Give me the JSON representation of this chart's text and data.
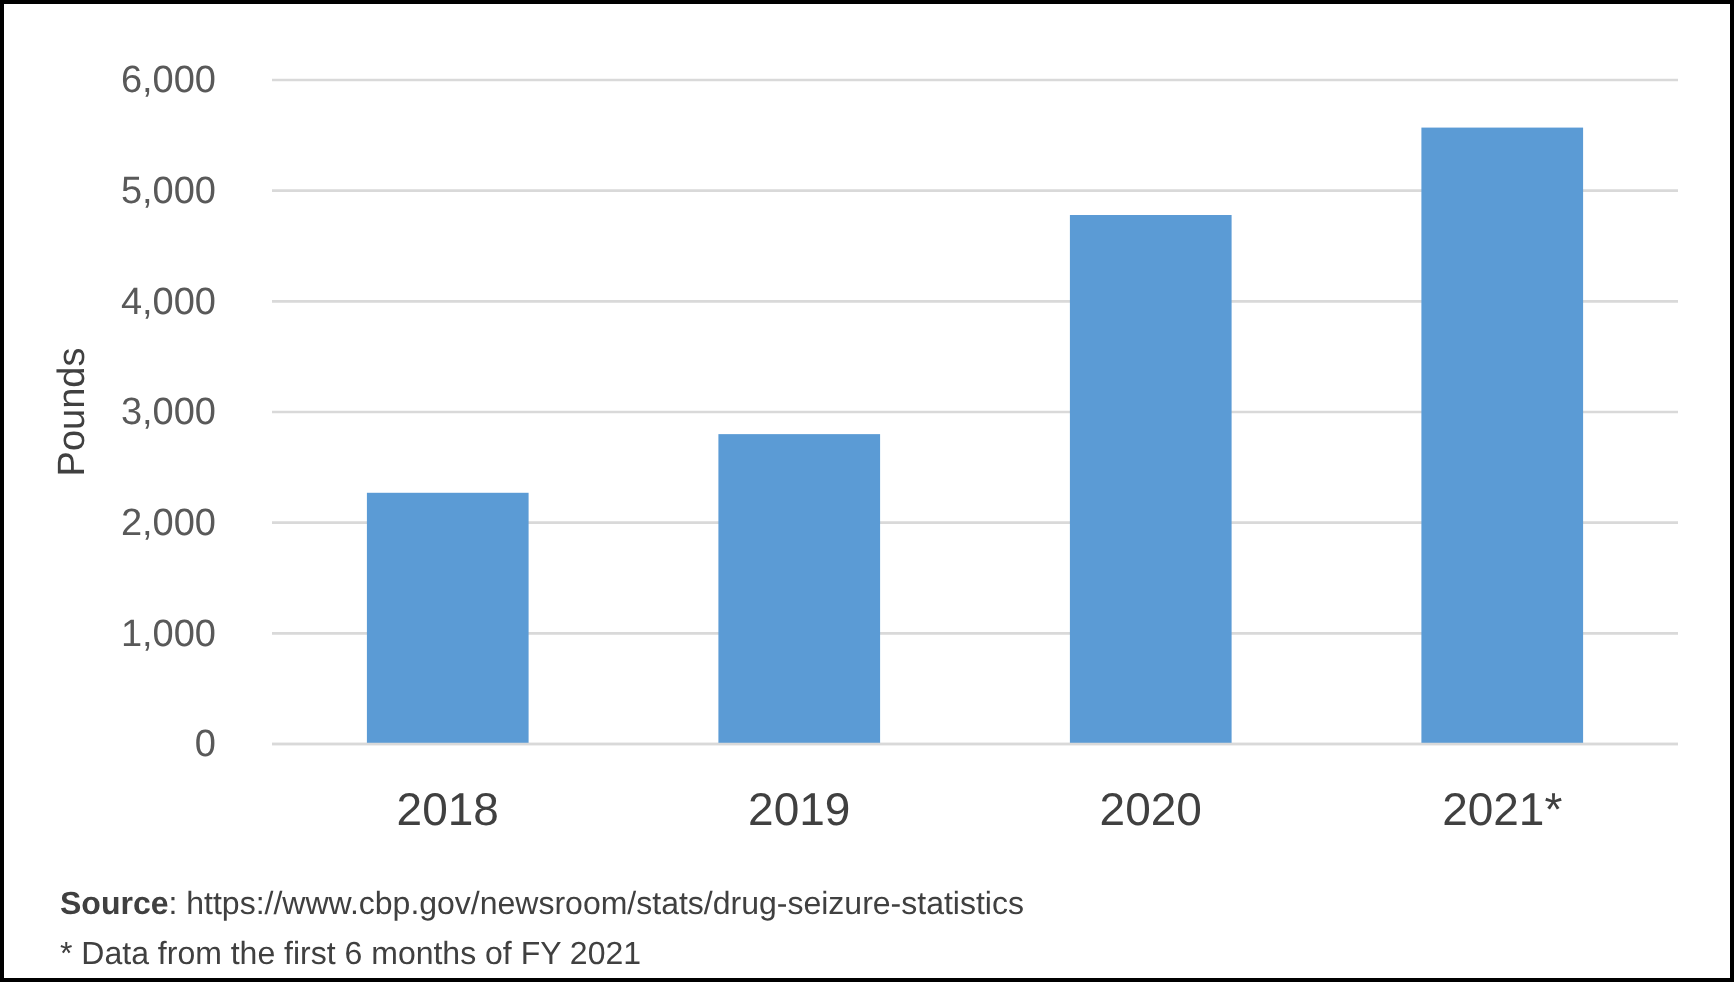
{
  "chart_data": {
    "type": "bar",
    "ylabel": "Pounds",
    "categories": [
      "2018",
      "2019",
      "2020",
      "2021*"
    ],
    "values": [
      2270,
      2800,
      4780,
      5570
    ],
    "color": "#5b9bd5",
    "ylim": [
      0,
      6000
    ],
    "yticks": [
      {
        "value": 0,
        "label": "0"
      },
      {
        "value": 1000,
        "label": "1,000"
      },
      {
        "value": 2000,
        "label": "2,000"
      },
      {
        "value": 3000,
        "label": "3,000"
      },
      {
        "value": 4000,
        "label": "4,000"
      },
      {
        "value": 5000,
        "label": "5,000"
      },
      {
        "value": 6000,
        "label": "6,000"
      }
    ],
    "grid": "y",
    "annotations": [
      "Source: https://www.cbp.gov/newsroom/stats/drug-seizure-statistics",
      "* Data from the first 6 months of FY 2021"
    ]
  }
}
